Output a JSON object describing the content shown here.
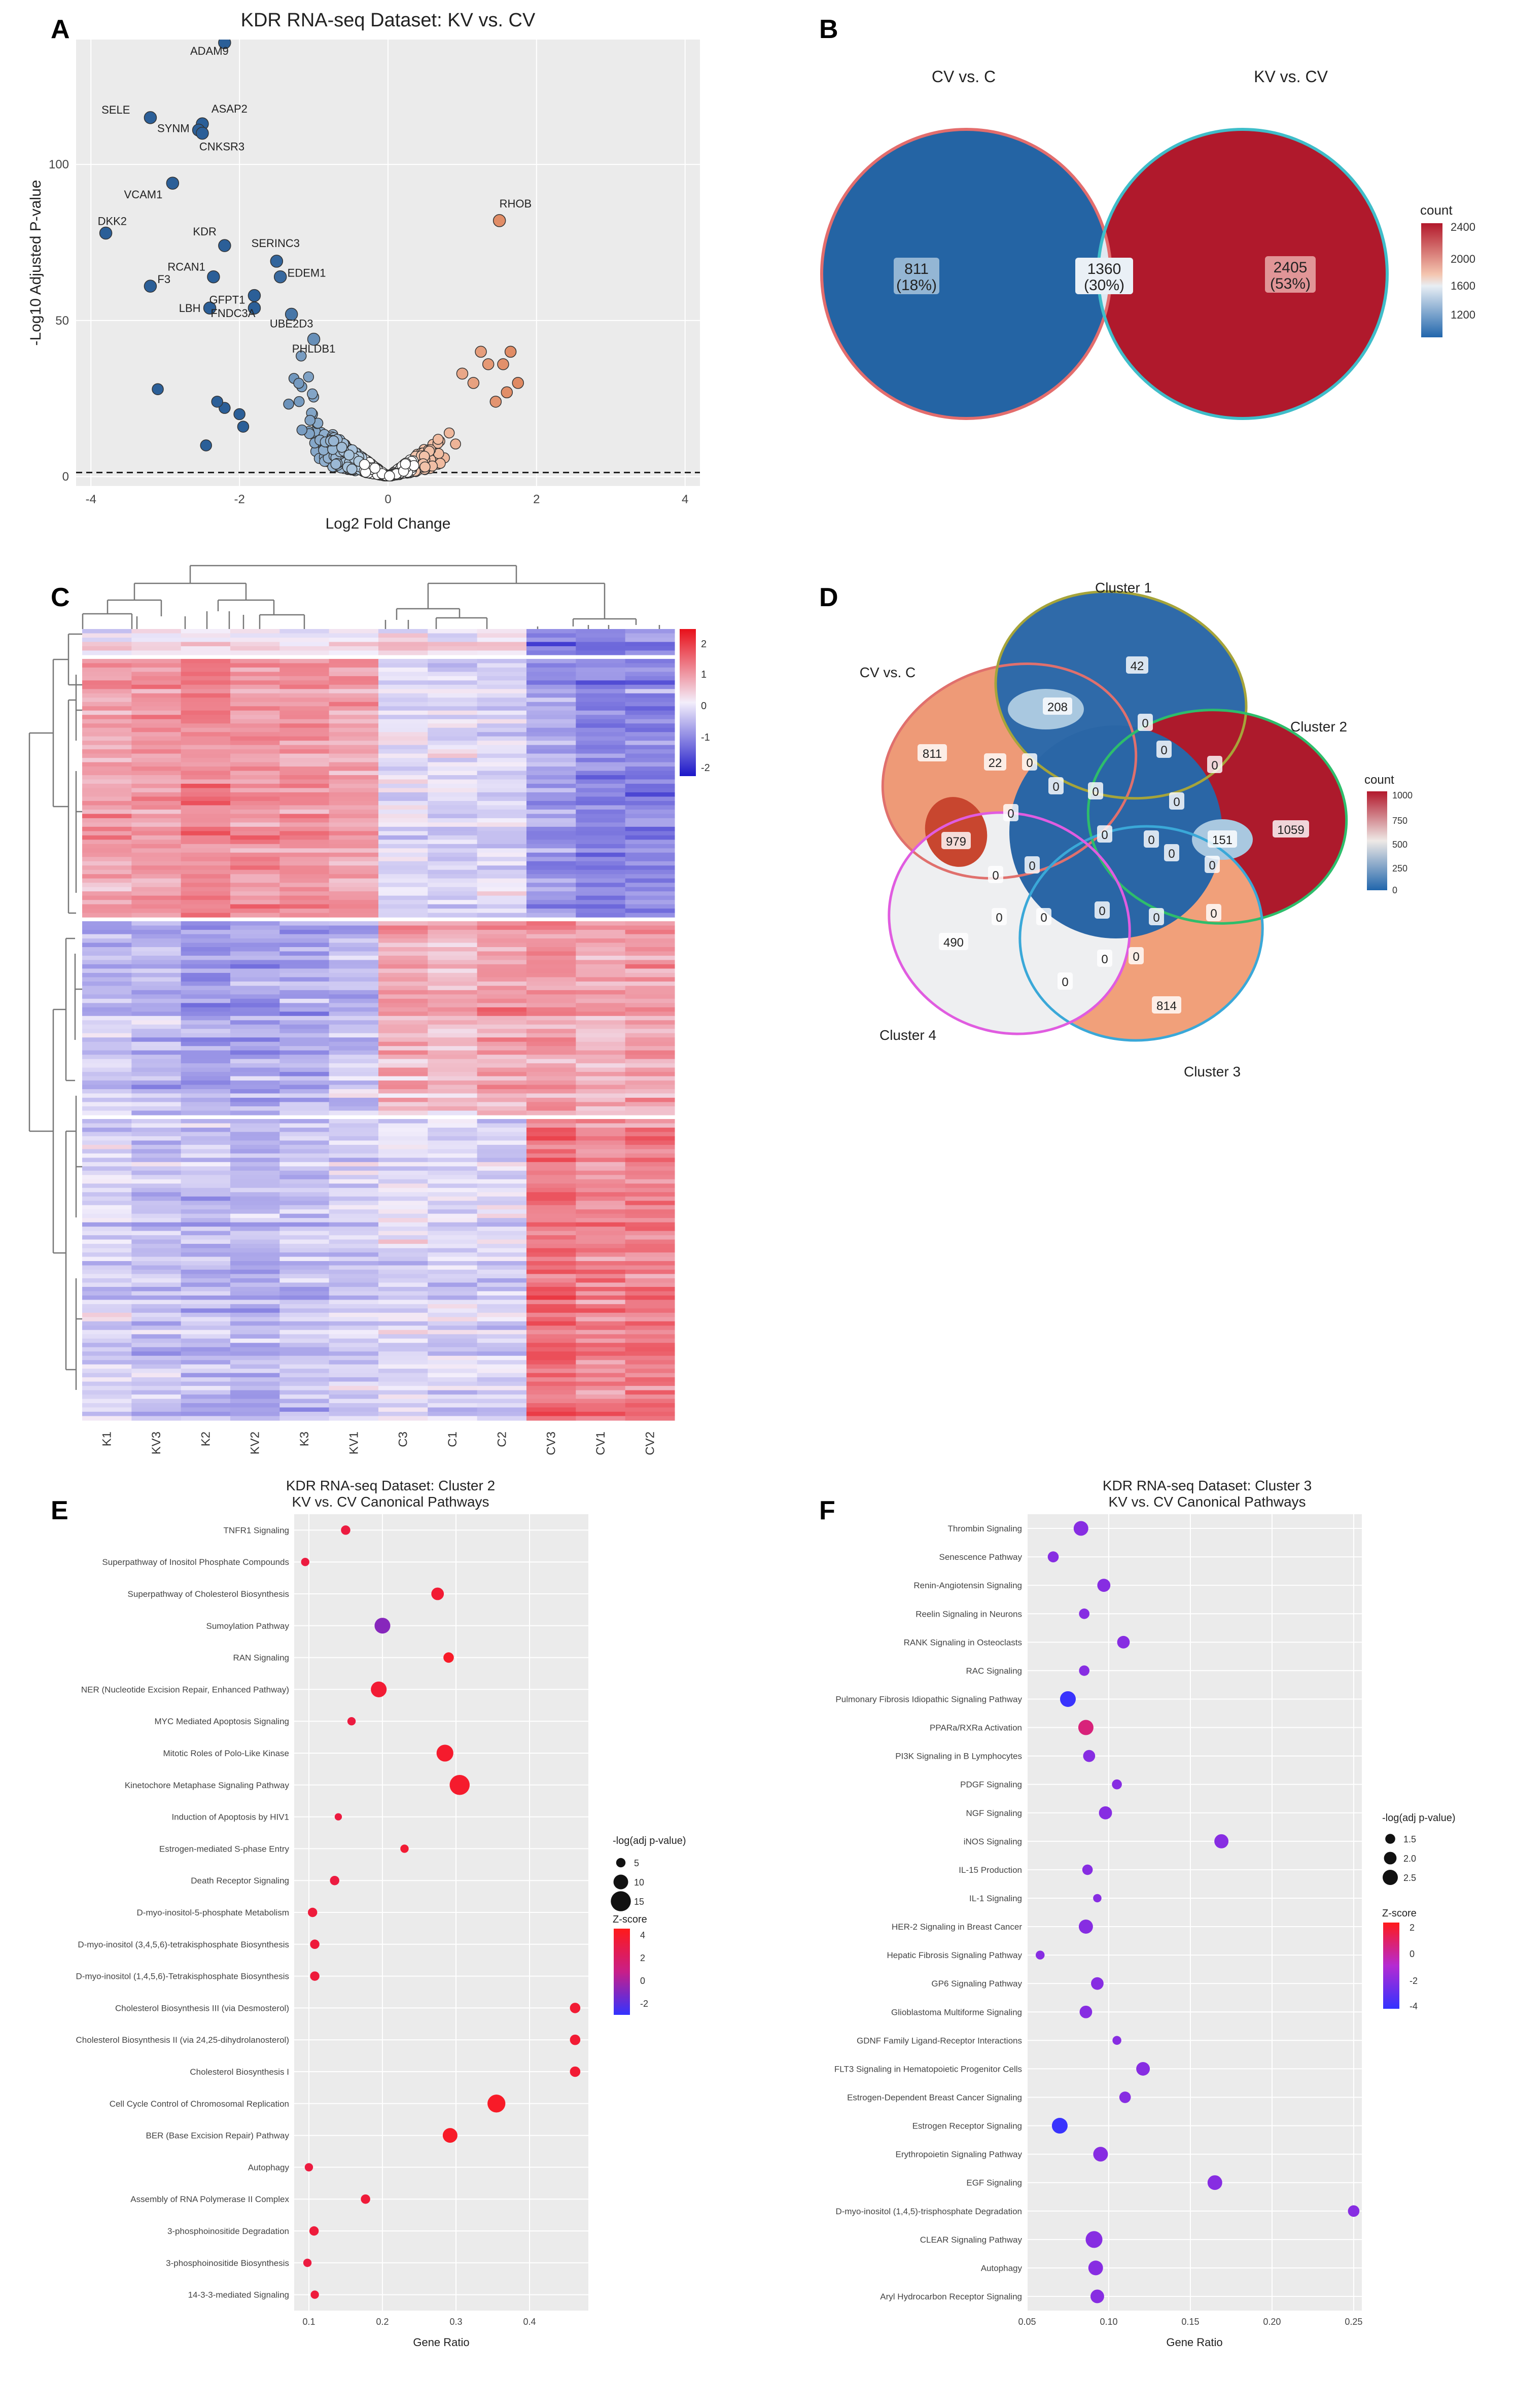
{
  "figure": {
    "panel_letters": [
      "A",
      "B",
      "C",
      "D",
      "E",
      "F"
    ]
  },
  "chart_data": [
    {
      "panel": "A",
      "type": "scatter",
      "title": "KDR RNA-seq Dataset: KV vs. CV",
      "xlabel": "Log2 Fold Change",
      "ylabel": "-Log10 Adjusted P-value",
      "xlim": [
        -4.2,
        4.2
      ],
      "ylim": [
        -3,
        140
      ],
      "xticks": [
        -4,
        -2,
        0,
        2,
        4
      ],
      "yticks": [
        0,
        50,
        100
      ],
      "threshold_y": 1.3,
      "labeled_points": [
        {
          "label": "ADAM9",
          "x": -2.2,
          "y": 139
        },
        {
          "label": "SELE",
          "x": -3.2,
          "y": 115
        },
        {
          "label": "ASAP2",
          "x": -2.5,
          "y": 113
        },
        {
          "label": "SYNM",
          "x": -2.55,
          "y": 111
        },
        {
          "label": "CNKSR3",
          "x": -2.5,
          "y": 110
        },
        {
          "label": "VCAM1",
          "x": -2.9,
          "y": 94
        },
        {
          "label": "DKK2",
          "x": -3.8,
          "y": 78
        },
        {
          "label": "KDR",
          "x": -2.2,
          "y": 74
        },
        {
          "label": "SERINC3",
          "x": -1.5,
          "y": 69
        },
        {
          "label": "RCAN1",
          "x": -2.35,
          "y": 64
        },
        {
          "label": "EDEM1",
          "x": -1.45,
          "y": 64
        },
        {
          "label": "F3",
          "x": -3.2,
          "y": 61
        },
        {
          "label": "GFPT1",
          "x": -1.8,
          "y": 58
        },
        {
          "label": "LBH",
          "x": -2.4,
          "y": 54
        },
        {
          "label": "FNDC3A",
          "x": -1.8,
          "y": 54
        },
        {
          "label": "UBE2D3",
          "x": -1.3,
          "y": 52
        },
        {
          "label": "PHLDB1",
          "x": -1.0,
          "y": 44
        },
        {
          "label": "RHOB",
          "x": 1.5,
          "y": 82
        }
      ],
      "outlier_points": [
        {
          "x": -3.1,
          "y": 28
        },
        {
          "x": -2.45,
          "y": 10
        },
        {
          "x": -2.2,
          "y": 22
        },
        {
          "x": -2.3,
          "y": 24
        },
        {
          "x": -2.0,
          "y": 20
        },
        {
          "x": -1.95,
          "y": 16
        },
        {
          "x": 1.25,
          "y": 40
        },
        {
          "x": 1.65,
          "y": 40
        },
        {
          "x": 1.55,
          "y": 36
        },
        {
          "x": 1.35,
          "y": 36
        },
        {
          "x": 1.15,
          "y": 30
        },
        {
          "x": 1.0,
          "y": 33
        },
        {
          "x": 1.75,
          "y": 30
        },
        {
          "x": 1.6,
          "y": 27
        },
        {
          "x": 1.45,
          "y": 24
        }
      ],
      "colors": {
        "down_strong": "#2b5f98",
        "down_weak": "#cfe2f0",
        "neutral": "#ffffff",
        "up_weak": "#f7d2bd",
        "up_strong": "#e08a63"
      }
    },
    {
      "panel": "B",
      "type": "venn",
      "sets": [
        "CV vs. C",
        "KV vs. CV"
      ],
      "regions": [
        {
          "count": "811",
          "percent": "(18%)"
        },
        {
          "count": "1360",
          "percent": "(30%)"
        },
        {
          "count": "2405",
          "percent": "(53%)"
        }
      ],
      "legend_title": "count",
      "legend_ticks": [
        "2400",
        "2000",
        "1600",
        "1200"
      ],
      "colors": {
        "left": "#2464a4",
        "overlap": "#dfe8f1",
        "right": "#b0192c",
        "left_border": "#e36d6d",
        "right_border": "#3fbdc9"
      }
    },
    {
      "panel": "C",
      "type": "heatmap",
      "columns": [
        "K1",
        "KV3",
        "K2",
        "KV2",
        "K3",
        "KV1",
        "C3",
        "C1",
        "C2",
        "CV3",
        "CV1",
        "CV2"
      ],
      "row_blocks": [
        {
          "rows": 6,
          "means": [
            0.1,
            0.1,
            0.2,
            0.1,
            0.1,
            0.1,
            0.2,
            0.0,
            0.1,
            -1.3,
            -1.5,
            -1.2
          ]
        },
        {
          "rows": 60,
          "means": [
            0.9,
            1.0,
            1.2,
            1.0,
            1.1,
            0.9,
            -0.2,
            -0.3,
            -0.3,
            -1.0,
            -1.3,
            -1.2
          ]
        },
        {
          "rows": 45,
          "means": [
            -0.6,
            -0.7,
            -1.0,
            -0.9,
            -0.8,
            -0.6,
            0.8,
            0.6,
            0.9,
            1.0,
            0.7,
            0.9
          ]
        },
        {
          "rows": 70,
          "means": [
            -0.3,
            -0.5,
            -0.6,
            -0.7,
            -0.5,
            -0.4,
            -0.2,
            -0.3,
            -0.3,
            1.5,
            1.2,
            1.3
          ]
        }
      ],
      "legend_ticks": [
        "2",
        "1",
        "0",
        "-1",
        "-2"
      ],
      "zlim": [
        -2.6,
        2.6
      ]
    },
    {
      "panel": "D",
      "type": "venn",
      "sets": [
        "CV vs. C",
        "Cluster 1",
        "Cluster 2",
        "Cluster 3",
        "Cluster 4"
      ],
      "region_counts": [
        "811",
        "42",
        "1059",
        "814",
        "490",
        "208",
        "22",
        "979",
        "151",
        "0",
        "0",
        "0",
        "0",
        "0",
        "0",
        "0",
        "0",
        "0",
        "0",
        "0",
        "0",
        "0",
        "0",
        "0",
        "0",
        "0",
        "0",
        "0",
        "0",
        "0",
        "0"
      ],
      "legend_title": "count",
      "legend_ticks": [
        "1000",
        "750",
        "500",
        "250",
        "0"
      ]
    },
    {
      "panel": "E",
      "type": "scatter",
      "title": "KDR RNA-seq Dataset: Cluster 2",
      "subtitle": "KV vs. CV Canonical Pathways",
      "xlabel": "Gene Ratio",
      "xlim": [
        0.08,
        0.48
      ],
      "xticks": [
        "0.1",
        "0.2",
        "0.3",
        "0.4"
      ],
      "size_legend_title": "-log(adj p-value)",
      "size_legend_labels": [
        "5",
        "10",
        "15"
      ],
      "color_legend_title": "Z-score",
      "color_legend_ticks": [
        "4",
        "2",
        "0",
        "-2"
      ],
      "pathways": [
        {
          "name": "TNFR1 Signaling",
          "ratio": 0.15,
          "size": 5,
          "z": 3
        },
        {
          "name": "Superpathway of Inositol Phosphate Compounds",
          "ratio": 0.095,
          "size": 4,
          "z": 3
        },
        {
          "name": "Superpathway of Cholesterol Biosynthesis",
          "ratio": 0.275,
          "size": 8,
          "z": 3.5
        },
        {
          "name": "Sumoylation Pathway",
          "ratio": 0.2,
          "size": 11,
          "z": -2
        },
        {
          "name": "RAN Signaling",
          "ratio": 0.29,
          "size": 6,
          "z": 4
        },
        {
          "name": "NER (Nucleotide Excision Repair, Enhanced Pathway)",
          "ratio": 0.195,
          "size": 11,
          "z": 3.5
        },
        {
          "name": "MYC Mediated Apoptosis Signaling",
          "ratio": 0.158,
          "size": 4,
          "z": 3
        },
        {
          "name": "Mitotic Roles of Polo-Like Kinase",
          "ratio": 0.285,
          "size": 12,
          "z": 3.8
        },
        {
          "name": "Kinetochore Metaphase Signaling Pathway",
          "ratio": 0.305,
          "size": 15,
          "z": 3.8
        },
        {
          "name": "Induction of Apoptosis by HIV1",
          "ratio": 0.14,
          "size": 3,
          "z": 3
        },
        {
          "name": "Estrogen-mediated S-phase Entry",
          "ratio": 0.23,
          "size": 4,
          "z": 3.5
        },
        {
          "name": "Death Receptor Signaling",
          "ratio": 0.135,
          "size": 5,
          "z": 3
        },
        {
          "name": "D-myo-inositol-5-phosphate Metabolism",
          "ratio": 0.105,
          "size": 5,
          "z": 3.2
        },
        {
          "name": "D-myo-inositol (3,4,5,6)-tetrakisphosphate Biosynthesis",
          "ratio": 0.108,
          "size": 5,
          "z": 3.2
        },
        {
          "name": "D-myo-inositol (1,4,5,6)-Tetrakisphosphate Biosynthesis",
          "ratio": 0.108,
          "size": 5,
          "z": 3.2
        },
        {
          "name": "Cholesterol Biosynthesis III (via Desmosterol)",
          "ratio": 0.462,
          "size": 6,
          "z": 3.5
        },
        {
          "name": "Cholesterol Biosynthesis II (via 24,25-dihydrolanosterol)",
          "ratio": 0.462,
          "size": 6,
          "z": 3.5
        },
        {
          "name": "Cholesterol Biosynthesis I",
          "ratio": 0.462,
          "size": 6,
          "z": 3.5
        },
        {
          "name": "Cell Cycle Control of Chromosomal Replication",
          "ratio": 0.355,
          "size": 13,
          "z": 4
        },
        {
          "name": "BER (Base Excision Repair) Pathway",
          "ratio": 0.292,
          "size": 10,
          "z": 4
        },
        {
          "name": "Autophagy",
          "ratio": 0.1,
          "size": 4,
          "z": 3
        },
        {
          "name": "Assembly of RNA Polymerase II Complex",
          "ratio": 0.177,
          "size": 5,
          "z": 3.3
        },
        {
          "name": "3-phosphoinositide Degradation",
          "ratio": 0.107,
          "size": 5,
          "z": 3.2
        },
        {
          "name": "3-phosphoinositide Biosynthesis",
          "ratio": 0.098,
          "size": 4,
          "z": 3
        },
        {
          "name": "14-3-3-mediated Signaling",
          "ratio": 0.108,
          "size": 4,
          "z": 3.2
        }
      ]
    },
    {
      "panel": "F",
      "type": "scatter",
      "title": "KDR RNA-seq Dataset: Cluster 3",
      "subtitle": "KV vs. CV Canonical Pathways",
      "xlabel": "Gene Ratio",
      "xlim": [
        0.05,
        0.255
      ],
      "xticks": [
        "0.05",
        "0.10",
        "0.15",
        "0.20",
        "0.25"
      ],
      "size_legend_title": "-log(adj p-value)",
      "size_legend_labels": [
        "1.5",
        "2.0",
        "2.5"
      ],
      "color_legend_title": "Z-score",
      "color_legend_ticks": [
        "2",
        "0",
        "-2",
        "-4"
      ],
      "pathways": [
        {
          "name": "Thrombin Signaling",
          "ratio": 0.083,
          "size": 2.4,
          "z": -1.5
        },
        {
          "name": "Senescence Pathway",
          "ratio": 0.066,
          "size": 1.7,
          "z": -1.5
        },
        {
          "name": "Renin-Angiotensin Signaling",
          "ratio": 0.097,
          "size": 2.1,
          "z": -1.5
        },
        {
          "name": "Reelin Signaling in Neurons",
          "ratio": 0.085,
          "size": 1.6,
          "z": -1.5
        },
        {
          "name": "RANK Signaling in Osteoclasts",
          "ratio": 0.109,
          "size": 2.0,
          "z": -1.5
        },
        {
          "name": "RAC Signaling",
          "ratio": 0.085,
          "size": 1.6,
          "z": -1.5
        },
        {
          "name": "Pulmonary Fibrosis Idiopathic Signaling Pathway",
          "ratio": 0.075,
          "size": 2.6,
          "z": -4
        },
        {
          "name": "PPARa/RXRa Activation",
          "ratio": 0.086,
          "size": 2.5,
          "z": 2
        },
        {
          "name": "PI3K Signaling in B Lymphocytes",
          "ratio": 0.088,
          "size": 1.9,
          "z": -1.5
        },
        {
          "name": "PDGF Signaling",
          "ratio": 0.105,
          "size": 1.5,
          "z": -1.5
        },
        {
          "name": "NGF Signaling",
          "ratio": 0.098,
          "size": 2.1,
          "z": -1.5
        },
        {
          "name": "iNOS Signaling",
          "ratio": 0.169,
          "size": 2.3,
          "z": -1.5
        },
        {
          "name": "IL-15 Production",
          "ratio": 0.087,
          "size": 1.6,
          "z": -1.5
        },
        {
          "name": "IL-1 Signaling",
          "ratio": 0.093,
          "size": 1.2,
          "z": -1.5
        },
        {
          "name": "HER-2 Signaling in Breast Cancer",
          "ratio": 0.086,
          "size": 2.3,
          "z": -1.5
        },
        {
          "name": "Hepatic Fibrosis Signaling Pathway",
          "ratio": 0.058,
          "size": 1.3,
          "z": -1.5
        },
        {
          "name": "GP6 Signaling Pathway",
          "ratio": 0.093,
          "size": 2.0,
          "z": -1.5
        },
        {
          "name": "Glioblastoma Multiforme Signaling",
          "ratio": 0.086,
          "size": 2.0,
          "z": -1.5
        },
        {
          "name": "GDNF Family Ligand-Receptor Interactions",
          "ratio": 0.105,
          "size": 1.3,
          "z": -1.5
        },
        {
          "name": "FLT3 Signaling in Hematopoietic Progenitor Cells",
          "ratio": 0.121,
          "size": 2.2,
          "z": -1.5
        },
        {
          "name": "Estrogen-Dependent Breast Cancer Signaling",
          "ratio": 0.11,
          "size": 1.8,
          "z": -1.5
        },
        {
          "name": "Estrogen Receptor Signaling",
          "ratio": 0.07,
          "size": 2.6,
          "z": -4
        },
        {
          "name": "Erythropoietin Signaling Pathway",
          "ratio": 0.095,
          "size": 2.4,
          "z": -1.5
        },
        {
          "name": "EGF Signaling",
          "ratio": 0.165,
          "size": 2.4,
          "z": -1.5
        },
        {
          "name": "D-myo-inositol (1,4,5)-trisphosphate Degradation",
          "ratio": 0.25,
          "size": 1.8,
          "z": -1.5
        },
        {
          "name": "CLEAR Signaling Pathway",
          "ratio": 0.091,
          "size": 2.8,
          "z": -1.5
        },
        {
          "name": "Autophagy",
          "ratio": 0.092,
          "size": 2.4,
          "z": -1.5
        },
        {
          "name": "Aryl Hydrocarbon Receptor Signaling",
          "ratio": 0.093,
          "size": 2.2,
          "z": -1.5
        }
      ]
    }
  ]
}
